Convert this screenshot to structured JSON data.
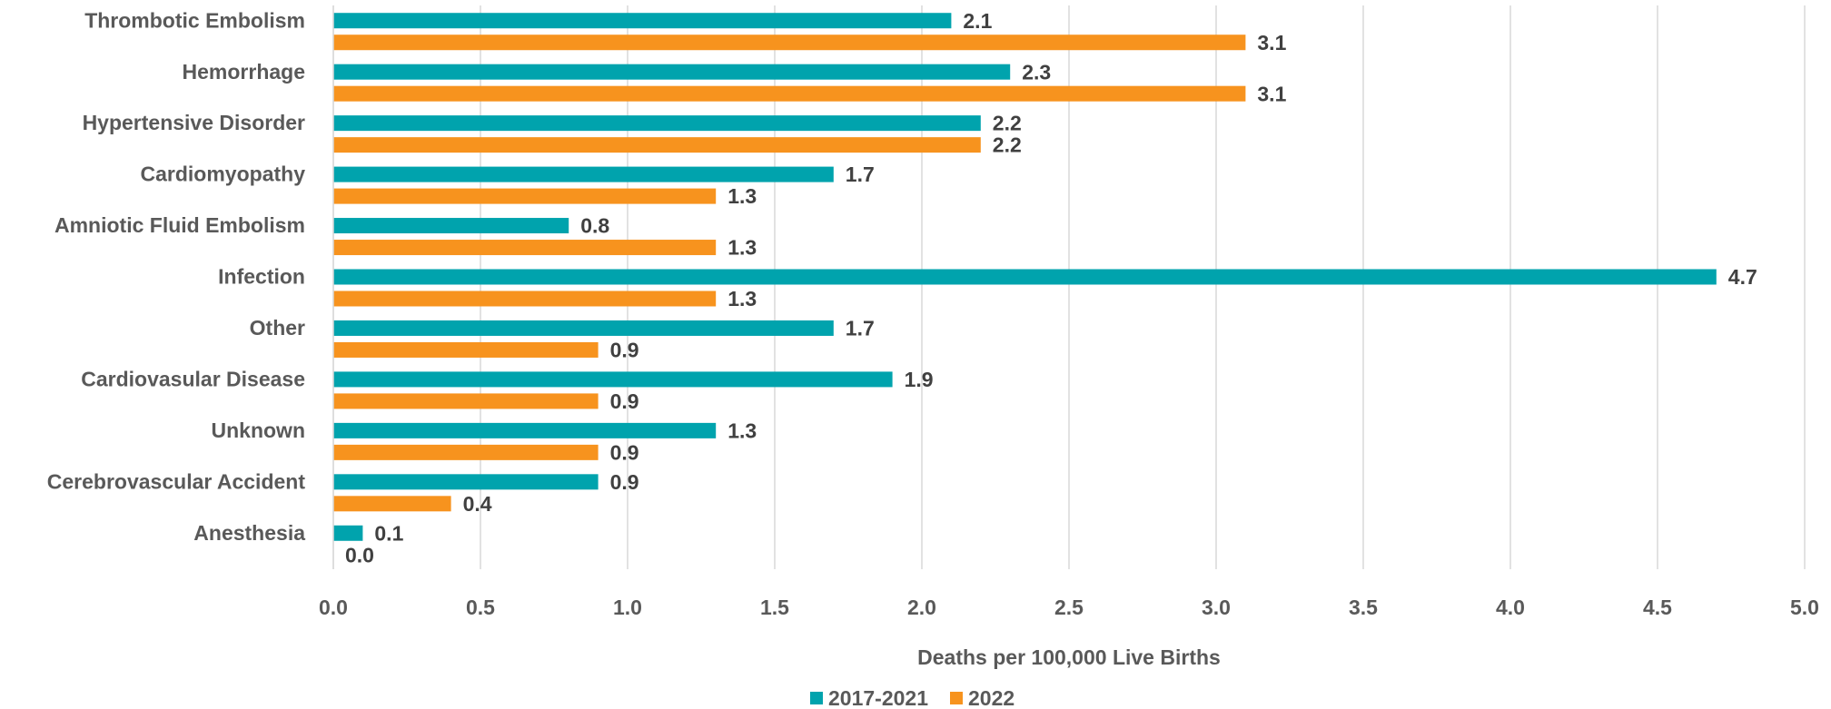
{
  "chart_data": {
    "type": "bar",
    "orientation": "horizontal",
    "x_label": "Deaths per 100,000 Live Births",
    "categories": [
      "Thrombotic Embolism",
      "Hemorrhage",
      "Hypertensive Disorder",
      "Cardiomyopathy",
      "Amniotic Fluid Embolism",
      "Infection",
      "Other",
      "Cardiovasular Disease",
      "Unknown",
      "Cerebrovascular Accident",
      "Anesthesia"
    ],
    "series": [
      {
        "name": "2017-2021",
        "color": "#00a3ad",
        "values": [
          2.1,
          2.3,
          2.2,
          1.7,
          0.8,
          4.7,
          1.7,
          1.9,
          1.3,
          0.9,
          0.1
        ],
        "value_labels": [
          "2.1",
          "2.3",
          "2.2",
          "1.7",
          "0.8",
          "4.7",
          "1.7",
          "1.9",
          "1.3",
          "0.9",
          "0.1"
        ]
      },
      {
        "name": "2022",
        "color": "#f7931e",
        "values": [
          3.1,
          3.1,
          2.2,
          1.3,
          1.3,
          1.3,
          0.9,
          0.9,
          0.9,
          0.4,
          0
        ],
        "value_labels": [
          "3.1",
          "3.1",
          "2.2",
          "1.3",
          "1.3",
          "1.3",
          "0.9",
          "0.9",
          "0.9",
          "0.4",
          "0.0"
        ]
      }
    ],
    "xlim": [
      0,
      5
    ],
    "xticks": [
      {
        "value": 0,
        "label": "0.0"
      },
      {
        "value": 0.5,
        "label": "0.5"
      },
      {
        "value": 1,
        "label": "1.0"
      },
      {
        "value": 1.5,
        "label": "1.5"
      },
      {
        "value": 2,
        "label": "2.0"
      },
      {
        "value": 2.5,
        "label": "2.5"
      },
      {
        "value": 3,
        "label": "3.0"
      },
      {
        "value": 3.5,
        "label": "3.5"
      },
      {
        "value": 4,
        "label": "4.0"
      },
      {
        "value": 4.5,
        "label": "4.5"
      },
      {
        "value": 5,
        "label": "5.0"
      }
    ],
    "grid": true,
    "legend": "bottom"
  }
}
